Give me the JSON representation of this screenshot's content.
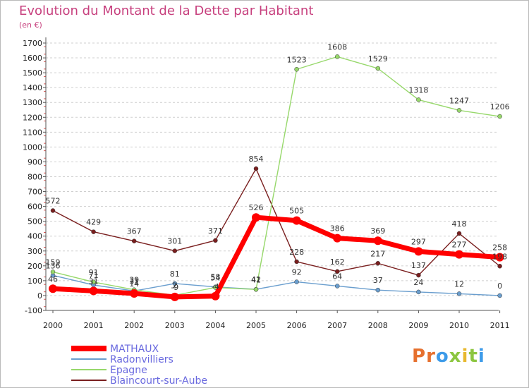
{
  "title": "Evolution du Montant de la Dette par Habitant",
  "subtitle": "(en €)",
  "logo": "Proxiti",
  "chart_data": {
    "type": "line",
    "x": [
      "2000",
      "2001",
      "2002",
      "2003",
      "2004",
      "2005",
      "2006",
      "2007",
      "2008",
      "2009",
      "2010",
      "2011"
    ],
    "ylim": [
      -100,
      1700
    ],
    "yticks": [
      -100,
      0,
      100,
      200,
      300,
      400,
      500,
      600,
      700,
      800,
      900,
      1000,
      1100,
      1200,
      1300,
      1400,
      1500,
      1600,
      1700
    ],
    "grid": "horizontal dashed",
    "legend_placement": "bottom-left",
    "series": [
      {
        "name": "MATHAUX",
        "color": "#ff0000",
        "values": [
          46,
          31,
          14,
          -9,
          -4,
          526,
          505,
          386,
          369,
          297,
          277,
          258
        ],
        "labels": [
          "46",
          "31",
          "14",
          "-9",
          "-4",
          "526",
          "505",
          "386",
          "369",
          "297",
          "277",
          "258"
        ]
      },
      {
        "name": "Radonvilliers",
        "color": "#6a9ece",
        "values": [
          136,
          71,
          31,
          81,
          58,
          42,
          92,
          64,
          37,
          24,
          12,
          0
        ],
        "labels": [
          "136",
          "71",
          "31",
          "81",
          "58",
          "42",
          "92",
          "64",
          "37",
          "24",
          "12",
          "0"
        ]
      },
      {
        "name": "Epagne",
        "color": "#97d86b",
        "values": [
          159,
          91,
          39,
          2,
          54,
          41,
          1523,
          1608,
          1529,
          1318,
          1247,
          1206
        ],
        "labels": [
          "159",
          "91",
          "39",
          "2",
          "54",
          "41",
          "1523",
          "1608",
          "1529",
          "1318",
          "1247",
          "1206"
        ]
      },
      {
        "name": "Blaincourt-sur-Aube",
        "color": "#7a1f1f",
        "values": [
          572,
          429,
          367,
          301,
          371,
          854,
          228,
          162,
          217,
          137,
          418,
          198
        ],
        "labels": [
          "572",
          "429",
          "367",
          "301",
          "371",
          "854",
          "228",
          "162",
          "217",
          "137",
          "418",
          "198"
        ]
      }
    ]
  }
}
